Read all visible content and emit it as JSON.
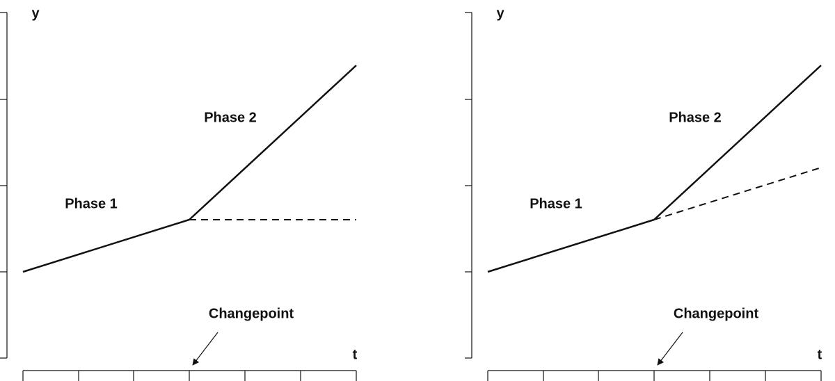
{
  "panels": [
    {
      "y_label": "y",
      "x_label": "t",
      "phase1": "Phase 1",
      "phase2": "Phase 2",
      "changepoint": "Changepoint"
    },
    {
      "y_label": "y",
      "x_label": "t",
      "phase1": "Phase 1",
      "phase2": "Phase 2",
      "changepoint": "Changepoint"
    }
  ]
}
